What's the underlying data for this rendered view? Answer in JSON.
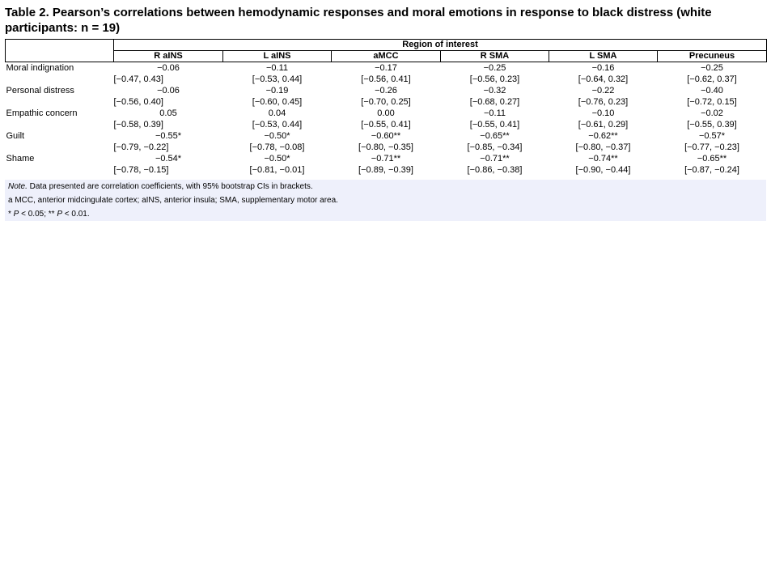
{
  "title": "Table 2. Pearson’s correlations between hemodynamic responses and moral emotions in response to black distress (white participants: n = 19)",
  "table": {
    "spanner": "Region of interest",
    "columns": [
      "R aINS",
      "L aINS",
      "aMCC",
      "R SMA",
      "L SMA",
      "Precuneus"
    ],
    "rows": [
      {
        "label": "Moral indignation",
        "r": [
          "−0.06",
          "−0.11",
          "−0.17",
          "−0.25",
          "−0.16",
          "−0.25"
        ],
        "ci": [
          "[−0.47, 0.43]",
          "[−0.53, 0.44]",
          "[−0.56, 0.41]",
          "[−0.56, 0.23]",
          "[−0.64, 0.32]",
          "[−0.62, 0.37]"
        ]
      },
      {
        "label": "Personal distress",
        "r": [
          "−0.06",
          "−0.19",
          "−0.26",
          "−0.32",
          "−0.22",
          "−0.40"
        ],
        "ci": [
          "[−0.56, 0.40]",
          "[−0.60, 0.45]",
          "[−0.70, 0.25]",
          "[−0.68, 0.27]",
          "[−0.76, 0.23]",
          "[−0.72, 0.15]"
        ]
      },
      {
        "label": "Empathic concern",
        "r": [
          "0.05",
          "0.04",
          "0.00",
          "−0.11",
          "−0.10",
          "−0.02"
        ],
        "ci": [
          "[−0.58, 0.39]",
          "[−0.53, 0.44]",
          "[−0.55, 0.41]",
          "[−0.55, 0.41]",
          "[−0.61, 0.29]",
          "[−0.55, 0.39]"
        ]
      },
      {
        "label": "Guilt",
        "r": [
          "−0.55*",
          "−0.50*",
          "−0.60**",
          "−0.65**",
          "−0.62**",
          "−0.57*"
        ],
        "ci": [
          "[−0.79, −0.22]",
          "[−0.78, −0.08]",
          "[−0.80, −0.35]",
          "[−0.85, −0.34]",
          "[−0.80, −0.37]",
          "[−0.77, −0.23]"
        ]
      },
      {
        "label": "Shame",
        "r": [
          "−0.54*",
          "−0.50*",
          "−0.71**",
          "−0.71**",
          "−0.74**",
          "−0.65**"
        ],
        "ci": [
          "[−0.78, −0.15]",
          "[−0.81, −0.01]",
          "[−0.89, −0.39]",
          "[−0.86, −0.38]",
          "[−0.90, −0.44]",
          "[−0.87, −0.24]"
        ]
      }
    ]
  },
  "notes": {
    "note_prefix": "Note.",
    "note_text": " Data presented are correlation coefficients, with 95% bootstrap CIs in brackets.",
    "abbrev": "a MCC, anterior midcingulate cortex; aINS, anterior insula; SMA, supplementary motor area.",
    "sig_a_star": "* ",
    "sig_a_p": "P",
    "sig_a_rest": " < 0.05; ** ",
    "sig_b_p": "P",
    "sig_b_rest": " < 0.01."
  }
}
